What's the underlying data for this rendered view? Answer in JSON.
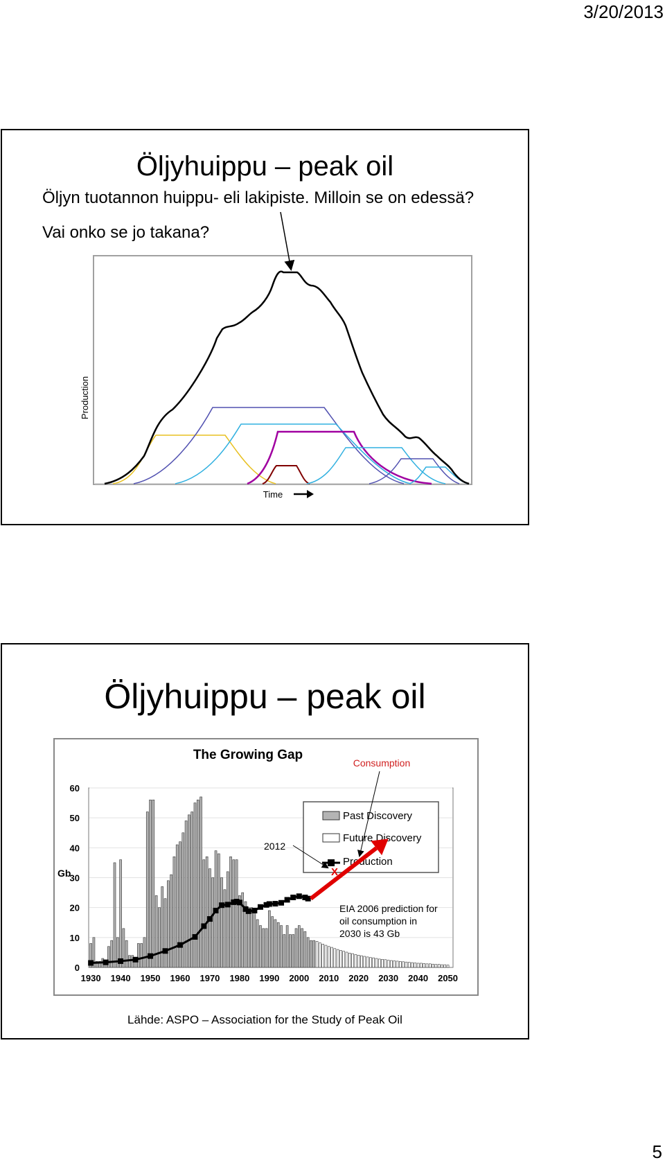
{
  "page": {
    "date": "3/20/2013",
    "number": "5"
  },
  "slide1": {
    "title": "Öljyhuippu – peak oil",
    "line1": "Öljyn tuotannon huippu- eli lakipiste. Milloin se on edessä?",
    "line2": "Vai onko se jo takana?",
    "chart_data": {
      "type": "line",
      "xlabel": "Time",
      "ylabel": "Production",
      "grid": false,
      "series_colors": [
        "#000000",
        "#e8c020",
        "#5050b0",
        "#30b0e0",
        "#a000a0",
        "#800000"
      ]
    }
  },
  "slide2": {
    "title": "Öljyhuippu – peak oil",
    "source": "Lähde: ASPO – Association for the Study of Peak Oil",
    "chart_data": {
      "type": "bar",
      "title": "The Growing Gap",
      "ylabel": "Gb",
      "ylim": [
        0,
        60
      ],
      "yticks": [
        "0",
        "10",
        "20",
        "30",
        "40",
        "50",
        "60"
      ],
      "xticks": [
        "1930",
        "1940",
        "1950",
        "1960",
        "1970",
        "1980",
        "1990",
        "2000",
        "2010",
        "2020",
        "2030",
        "2040",
        "2050"
      ],
      "legend": {
        "placement": "top-right",
        "entries": [
          "Past Discovery",
          "Future Discovery",
          "Production"
        ]
      },
      "annotations": {
        "consumption": "Consumption",
        "year_2012": "2012",
        "x_mark": "X",
        "eia_line1": "EIA 2006 prediction for",
        "eia_line2": "oil consumption in",
        "eia_line3": "2030 is 43 Gb"
      },
      "past_discovery": {
        "years": [
          1930,
          1931,
          1932,
          1933,
          1934,
          1935,
          1936,
          1937,
          1938,
          1939,
          1940,
          1941,
          1942,
          1943,
          1944,
          1945,
          1946,
          1947,
          1948,
          1949,
          1950,
          1951,
          1952,
          1953,
          1954,
          1955,
          1956,
          1957,
          1958,
          1959,
          1960,
          1961,
          1962,
          1963,
          1964,
          1965,
          1966,
          1967,
          1968,
          1969,
          1970,
          1971,
          1972,
          1973,
          1974,
          1975,
          1976,
          1977,
          1978,
          1979,
          1980,
          1981,
          1982,
          1983,
          1984,
          1985,
          1986,
          1987,
          1988,
          1989,
          1990,
          1991,
          1992,
          1993,
          1994,
          1995,
          1996,
          1997,
          1998,
          1999,
          2000,
          2001,
          2002,
          2003,
          2004,
          2005
        ],
        "values": [
          8,
          10,
          2,
          2,
          3,
          2,
          7,
          9,
          35,
          10,
          36,
          13,
          9,
          4,
          4,
          2,
          8,
          8,
          10,
          52,
          56,
          56,
          24,
          20,
          27,
          23,
          29,
          31,
          37,
          41,
          42,
          45,
          49,
          51,
          52,
          55,
          56,
          57,
          36,
          37,
          33,
          30,
          39,
          38,
          30,
          26,
          32,
          37,
          36,
          36,
          24,
          25,
          22,
          20,
          20,
          19,
          16,
          14,
          13,
          13,
          19,
          17,
          16,
          15,
          14,
          11,
          14,
          11,
          11,
          13,
          14,
          13,
          12,
          10,
          9,
          9
        ]
      },
      "future_discovery": {
        "years": [
          2006,
          2007,
          2008,
          2009,
          2010,
          2011,
          2012,
          2013,
          2014,
          2015,
          2016,
          2017,
          2018,
          2019,
          2020,
          2021,
          2022,
          2023,
          2024,
          2025,
          2026,
          2027,
          2028,
          2029,
          2030,
          2031,
          2032,
          2033,
          2034,
          2035,
          2036,
          2037,
          2038,
          2039,
          2040,
          2041,
          2042,
          2043,
          2044,
          2045,
          2046,
          2047,
          2048,
          2049,
          2050
        ],
        "values": [
          8.7,
          8.2,
          7.8,
          7.4,
          7.0,
          6.7,
          6.3,
          6.0,
          5.7,
          5.4,
          5.1,
          4.8,
          4.6,
          4.3,
          4.1,
          3.9,
          3.7,
          3.5,
          3.3,
          3.2,
          3.0,
          2.8,
          2.7,
          2.6,
          2.4,
          2.3,
          2.2,
          2.1,
          2.0,
          1.9,
          1.8,
          1.7,
          1.6,
          1.5,
          1.4,
          1.4,
          1.3,
          1.2,
          1.2,
          1.1,
          1.0,
          1.0,
          0.9,
          0.9,
          0.8
        ]
      },
      "production": {
        "years": [
          1930,
          1935,
          1940,
          1945,
          1950,
          1955,
          1960,
          1965,
          1968,
          1970,
          1972,
          1974,
          1976,
          1978,
          1979,
          1980,
          1982,
          1983,
          1985,
          1987,
          1989,
          1990,
          1992,
          1994,
          1996,
          1998,
          2000,
          2002,
          2003
        ],
        "values": [
          1.5,
          1.7,
          2.1,
          2.6,
          3.8,
          5.5,
          7.5,
          10.2,
          13.8,
          16.2,
          19.0,
          20.8,
          21.0,
          21.8,
          22.0,
          21.7,
          19.5,
          18.8,
          19.0,
          20.2,
          20.9,
          21.2,
          21.3,
          21.6,
          22.6,
          23.4,
          23.8,
          23.4,
          23.0
        ]
      },
      "consumption_projection": {
        "from": [
          2003,
          23
        ],
        "to": [
          2030,
          43
        ]
      }
    }
  }
}
